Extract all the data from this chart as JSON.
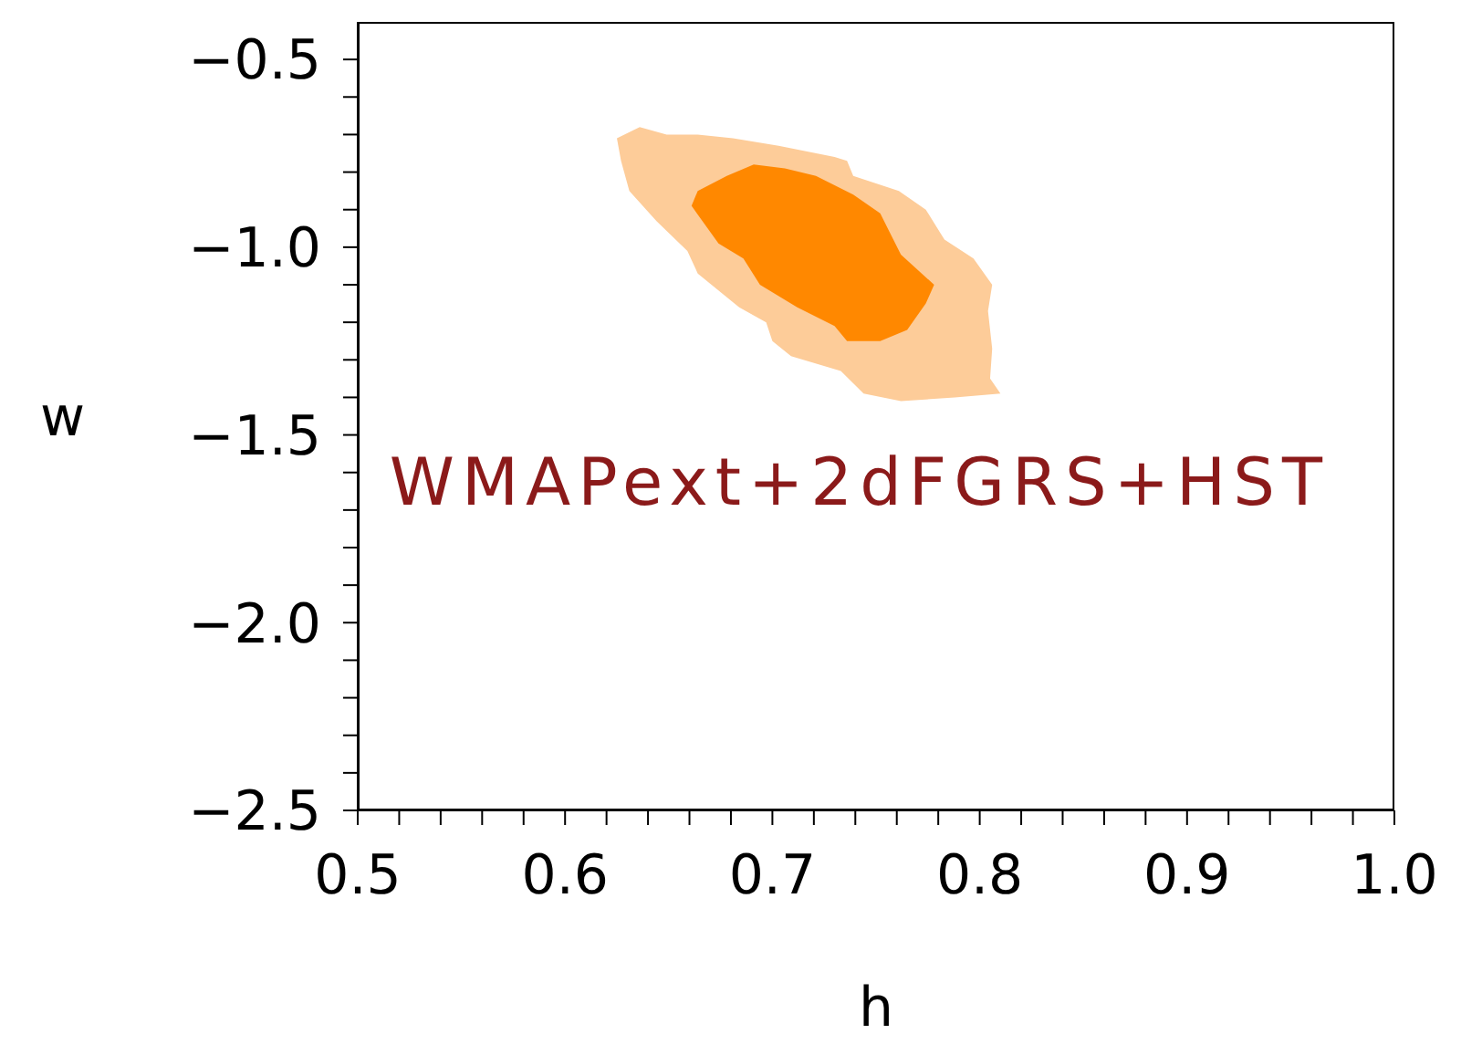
{
  "chart_data": {
    "type": "area",
    "xlabel": "h",
    "ylabel": "w",
    "xlim": [
      0.5,
      1.0
    ],
    "ylim": [
      -2.5,
      -0.4
    ],
    "xticks": [
      0.5,
      {
        "value": 0.52,
        "label": null
      },
      {
        "value": 0.54,
        "label": null
      },
      {
        "value": 0.56,
        "label": null
      },
      {
        "value": 0.58,
        "label": null
      },
      0.6,
      {
        "value": 0.62,
        "label": null
      },
      {
        "value": 0.64,
        "label": null
      },
      {
        "value": 0.66,
        "label": null
      },
      {
        "value": 0.68,
        "label": null
      },
      0.7,
      {
        "value": 0.72,
        "label": null
      },
      {
        "value": 0.74,
        "label": null
      },
      {
        "value": 0.76,
        "label": null
      },
      {
        "value": 0.78,
        "label": null
      },
      0.8,
      {
        "value": 0.82,
        "label": null
      },
      {
        "value": 0.84,
        "label": null
      },
      {
        "value": 0.86,
        "label": null
      },
      {
        "value": 0.88,
        "label": null
      },
      0.9,
      {
        "value": 0.92,
        "label": null
      },
      {
        "value": 0.94,
        "label": null
      },
      {
        "value": 0.96,
        "label": null
      },
      {
        "value": 0.98,
        "label": null
      },
      {
        "value": 1.0,
        "label": "1.0"
      }
    ],
    "yticks": [
      {
        "value": -2.5,
        "label": "−2.5"
      },
      {
        "value": -2.4,
        "label": null
      },
      {
        "value": -2.3,
        "label": null
      },
      {
        "value": -2.2,
        "label": null
      },
      {
        "value": -2.1,
        "label": null
      },
      {
        "value": -2.0,
        "label": "−2.0"
      },
      {
        "value": -1.9,
        "label": null
      },
      {
        "value": -1.8,
        "label": null
      },
      {
        "value": -1.7,
        "label": null
      },
      {
        "value": -1.6,
        "label": null
      },
      {
        "value": -1.5,
        "label": "−1.5"
      },
      {
        "value": -1.4,
        "label": null
      },
      {
        "value": -1.3,
        "label": null
      },
      {
        "value": -1.2,
        "label": null
      },
      {
        "value": -1.1,
        "label": null
      },
      {
        "value": -1.0,
        "label": "−1.0"
      },
      {
        "value": -0.9,
        "label": null
      },
      {
        "value": -0.8,
        "label": null
      },
      {
        "value": -0.7,
        "label": null
      },
      {
        "value": -0.6,
        "label": null
      },
      {
        "value": -0.5,
        "label": "−0.5"
      }
    ],
    "annotations": [
      "WMAPext+2dFGRS+HST"
    ],
    "series": [
      {
        "type": "area",
        "color": "#fdcc99",
        "x": [
          0.625,
          0.636,
          0.649,
          0.664,
          0.681,
          0.703,
          0.73,
          0.736,
          0.739,
          0.761,
          0.774,
          0.783,
          0.797,
          0.806,
          0.804,
          0.806,
          0.805,
          0.81,
          0.788,
          0.762,
          0.744,
          0.733,
          0.709,
          0.7,
          0.697,
          0.684,
          0.664,
          0.659,
          0.644,
          0.631,
          0.627
        ],
        "values": [
          -0.71,
          -0.68,
          -0.7,
          -0.7,
          -0.71,
          -0.73,
          -0.76,
          -0.77,
          -0.81,
          -0.85,
          -0.9,
          -0.98,
          -1.03,
          -1.1,
          -1.17,
          -1.27,
          -1.35,
          -1.39,
          -1.4,
          -1.41,
          -1.39,
          -1.33,
          -1.29,
          -1.25,
          -1.2,
          -1.16,
          -1.07,
          -1.01,
          -0.93,
          -0.85,
          -0.77
        ]
      },
      {
        "type": "area",
        "color": "#ff8800",
        "x": [
          0.661,
          0.664,
          0.678,
          0.691,
          0.706,
          0.721,
          0.739,
          0.752,
          0.762,
          0.778,
          0.774,
          0.765,
          0.752,
          0.736,
          0.73,
          0.712,
          0.694,
          0.686,
          0.674
        ],
        "values": [
          -0.89,
          -0.85,
          -0.81,
          -0.78,
          -0.79,
          -0.81,
          -0.86,
          -0.91,
          -1.02,
          -1.1,
          -1.15,
          -1.22,
          -1.25,
          -1.25,
          -1.21,
          -1.16,
          -1.1,
          -1.03,
          -0.99
        ]
      }
    ]
  }
}
